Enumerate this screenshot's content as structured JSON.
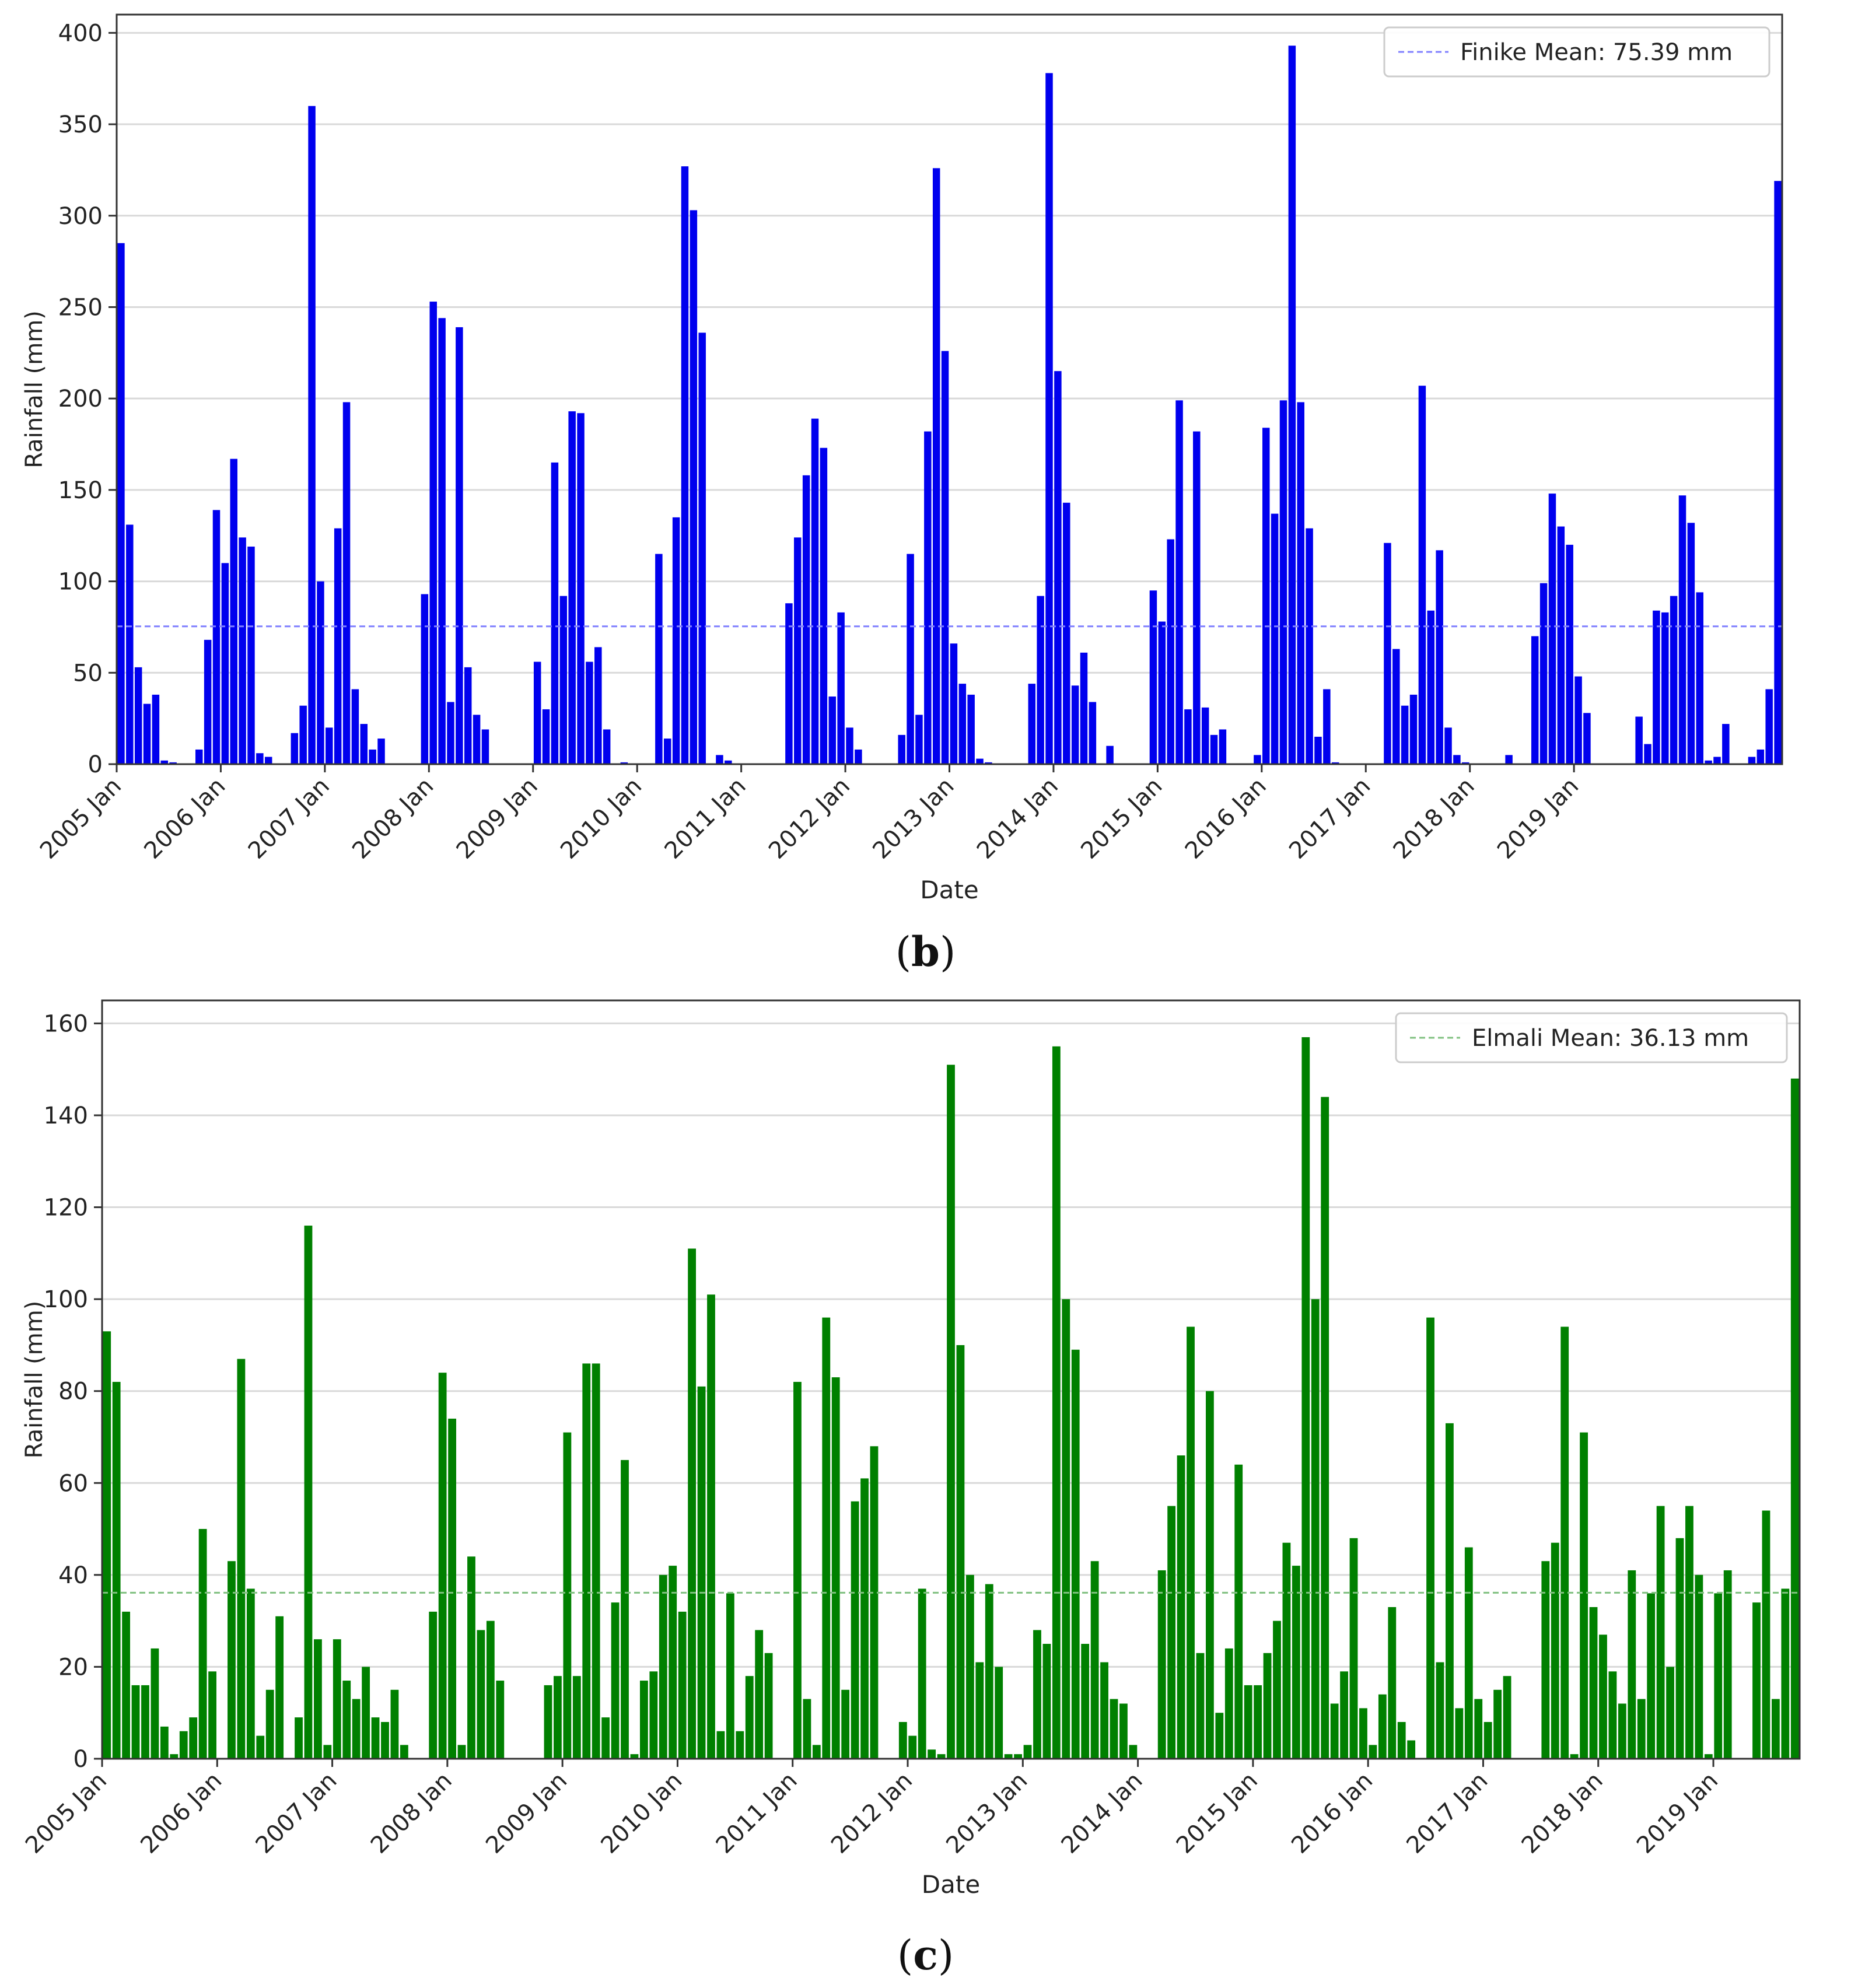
{
  "charts": [
    {
      "id": "b",
      "caption": "b",
      "type": "bar",
      "color": "#0000ee",
      "mean": 75.39,
      "mean_color": "#8080ff",
      "legend": "Finike Mean: 75.39 mm",
      "xlabel": "Date",
      "ylabel": "Rainfall (mm)",
      "ylim": [
        0,
        410
      ],
      "yticks": [
        0,
        50,
        100,
        150,
        200,
        250,
        300,
        350,
        400
      ],
      "xticks": [
        "2005 Jan",
        "2006 Jan",
        "2007 Jan",
        "2008 Jan",
        "2009 Jan",
        "2010 Jan",
        "2011 Jan",
        "2012 Jan",
        "2013 Jan",
        "2014 Jan",
        "2015 Jan",
        "2016 Jan",
        "2017 Jan",
        "2018 Jan",
        "2019 Jan"
      ],
      "values": [
        285,
        131,
        53,
        33,
        38,
        2,
        1,
        0,
        0,
        8,
        68,
        139,
        110,
        167,
        124,
        119,
        6,
        4,
        0,
        0,
        17,
        32,
        360,
        100,
        20,
        129,
        198,
        41,
        22,
        8,
        14,
        0,
        0,
        0,
        0,
        93,
        253,
        244,
        34,
        239,
        53,
        27,
        19,
        0,
        0,
        0,
        0,
        0,
        56,
        30,
        165,
        92,
        193,
        192,
        56,
        64,
        19,
        0,
        1,
        0,
        0,
        0,
        115,
        14,
        135,
        327,
        303,
        236,
        0,
        5,
        2,
        0,
        0,
        0,
        0,
        0,
        0,
        88,
        124,
        158,
        189,
        173,
        37,
        83,
        20,
        8,
        0,
        0,
        0,
        0,
        16,
        115,
        27,
        182,
        326,
        226,
        66,
        44,
        38,
        3,
        1,
        0,
        0,
        0,
        0,
        44,
        92,
        378,
        215,
        143,
        43,
        61,
        34,
        0,
        10,
        0,
        0,
        0,
        0,
        95,
        78,
        123,
        199,
        30,
        182,
        31,
        16,
        19,
        0,
        0,
        0,
        5,
        184,
        137,
        199,
        393,
        198,
        129,
        15,
        41,
        1,
        0,
        0,
        0,
        0,
        0,
        121,
        63,
        32,
        38,
        207,
        84,
        117,
        20,
        5,
        1,
        0,
        0,
        0,
        0,
        5,
        0,
        0,
        70,
        99,
        148,
        130,
        120,
        48,
        28,
        0,
        0,
        0,
        0,
        0,
        26,
        11,
        84,
        83,
        92,
        147,
        132,
        94,
        2,
        4,
        22,
        0,
        0,
        4,
        8,
        41,
        319
      ]
    },
    {
      "id": "c",
      "caption": "c",
      "type": "bar",
      "color": "#008000",
      "mean": 36.13,
      "mean_color": "#80c080",
      "legend": "Elmali Mean: 36.13 mm",
      "xlabel": "Date",
      "ylabel": "Rainfall (mm)",
      "ylim": [
        0,
        165
      ],
      "yticks": [
        0,
        20,
        40,
        60,
        80,
        100,
        120,
        140,
        160
      ],
      "xticks": [
        "2005 Jan",
        "2006 Jan",
        "2007 Jan",
        "2008 Jan",
        "2009 Jan",
        "2010 Jan",
        "2011 Jan",
        "2012 Jan",
        "2013 Jan",
        "2014 Jan",
        "2015 Jan",
        "2016 Jan",
        "2017 Jan",
        "2018 Jan",
        "2019 Jan"
      ],
      "values": [
        93,
        82,
        32,
        16,
        16,
        24,
        7,
        1,
        6,
        9,
        50,
        19,
        0,
        43,
        87,
        37,
        5,
        15,
        31,
        0,
        9,
        116,
        26,
        3,
        26,
        17,
        13,
        20,
        9,
        8,
        15,
        3,
        0,
        0,
        32,
        84,
        74,
        3,
        44,
        28,
        30,
        17,
        0,
        0,
        0,
        0,
        16,
        18,
        71,
        18,
        86,
        86,
        9,
        34,
        65,
        1,
        17,
        19,
        40,
        42,
        32,
        111,
        81,
        101,
        6,
        36,
        6,
        18,
        28,
        23,
        0,
        0,
        82,
        13,
        3,
        96,
        83,
        15,
        56,
        61,
        68,
        0,
        0,
        8,
        5,
        37,
        2,
        1,
        151,
        90,
        40,
        21,
        38,
        20,
        1,
        1,
        3,
        28,
        25,
        155,
        100,
        89,
        25,
        43,
        21,
        13,
        12,
        3,
        0,
        0,
        41,
        55,
        66,
        94,
        23,
        80,
        10,
        24,
        64,
        16,
        16,
        23,
        30,
        47,
        42,
        157,
        100,
        144,
        12,
        19,
        48,
        11,
        3,
        14,
        33,
        8,
        4,
        0,
        96,
        21,
        73,
        11,
        46,
        13,
        8,
        15,
        18,
        0,
        0,
        0,
        43,
        47,
        94,
        1,
        71,
        33,
        27,
        19,
        12,
        41,
        13,
        36,
        55,
        20,
        48,
        55,
        40,
        1,
        36,
        41,
        0,
        0,
        34,
        54,
        13,
        37,
        148
      ]
    }
  ]
}
